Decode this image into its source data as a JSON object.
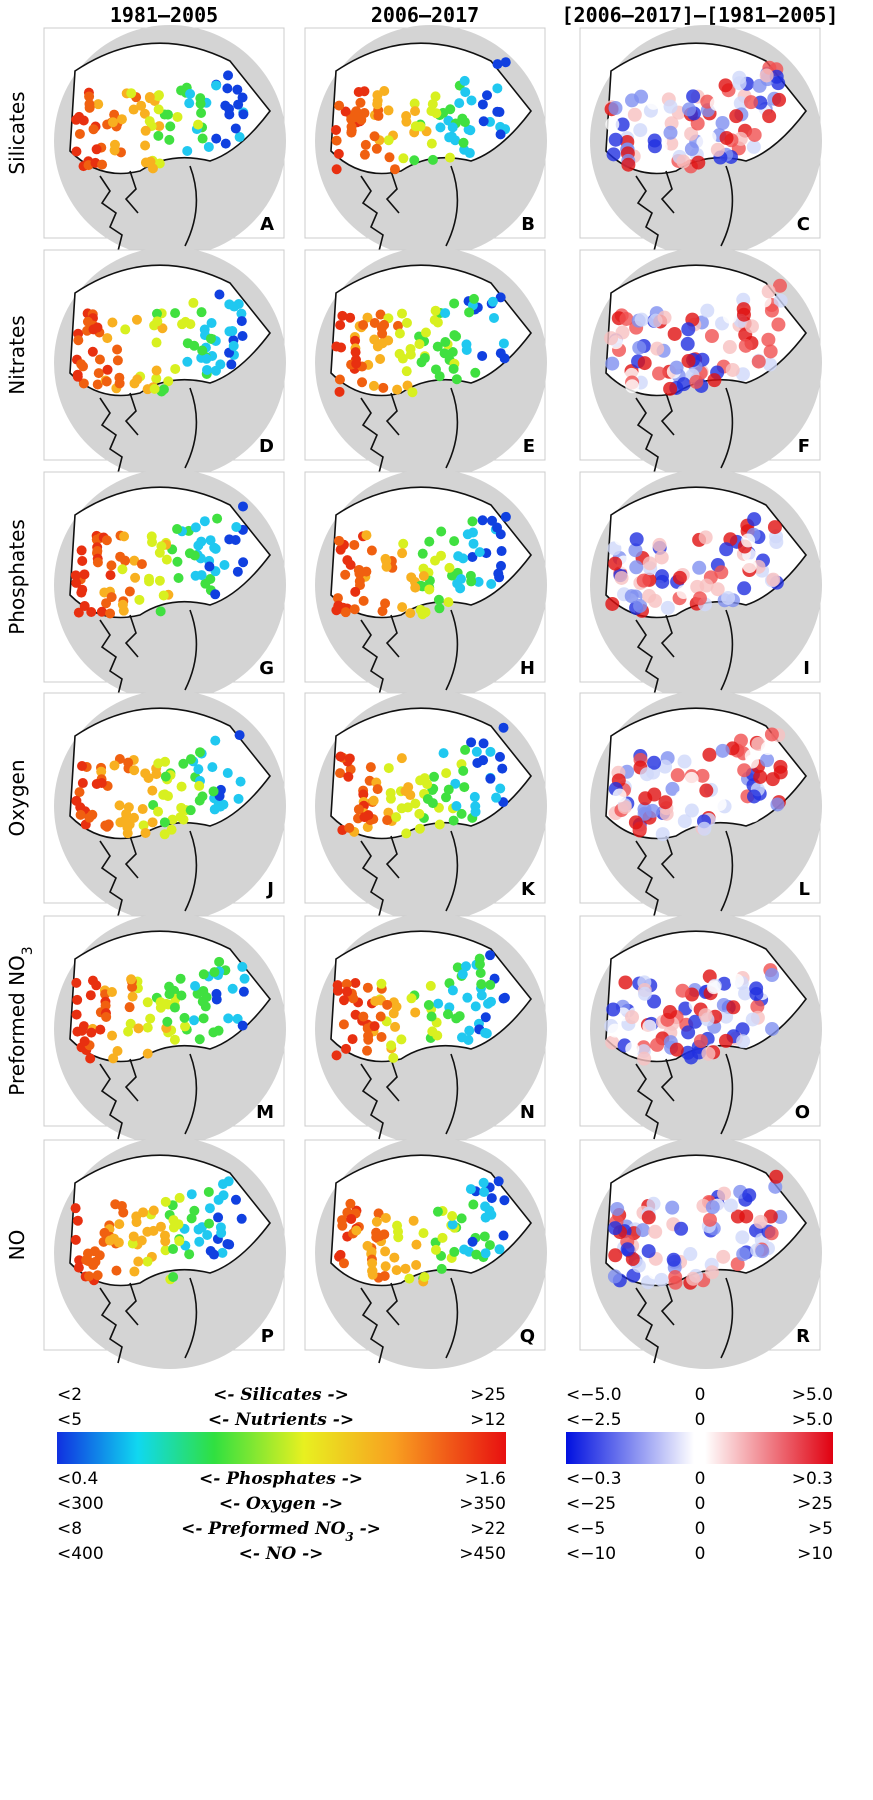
{
  "columns": [
    "1981–2005",
    "2006–2017",
    "[2006–2017]–[1981–2005]"
  ],
  "rows": [
    {
      "label": {
        "text": "Silicates"
      },
      "panels": [
        "A",
        "B",
        "C"
      ]
    },
    {
      "label": {
        "text": "Nitrates"
      },
      "panels": [
        "D",
        "E",
        "F"
      ]
    },
    {
      "label": {
        "text": "Phosphates"
      },
      "panels": [
        "G",
        "H",
        "I"
      ]
    },
    {
      "label": {
        "text": "Oxygen"
      },
      "panels": [
        "J",
        "K",
        "L"
      ]
    },
    {
      "label": {
        "text": "Preformed NO",
        "sub": "3"
      },
      "panels": [
        "M",
        "N",
        "O"
      ]
    },
    {
      "label": {
        "text": "NO"
      },
      "panels": [
        "P",
        "Q",
        "R"
      ]
    }
  ],
  "legend": {
    "left": {
      "above": [
        {
          "low": "<2",
          "name": {
            "text": "<- Silicates ->"
          },
          "high": ">25"
        },
        {
          "low": "<5",
          "name": {
            "text": "<- Nutrients ->"
          },
          "high": ">12"
        }
      ],
      "below": [
        {
          "low": "<0.4",
          "name": {
            "text": "<- Phosphates ->"
          },
          "high": ">1.6"
        },
        {
          "low": "<300",
          "name": {
            "text": "<- Oxygen ->"
          },
          "high": ">350"
        },
        {
          "low": "<8",
          "name": {
            "text": "<- Preformed NO",
            "sub": "3",
            "tail": " ->"
          },
          "high": ">22"
        },
        {
          "low": "<400",
          "name": {
            "text": "<- NO ->"
          },
          "high": ">450"
        }
      ]
    },
    "right": {
      "above": [
        {
          "low": "<−5.0",
          "mid": "0",
          "high": ">5.0"
        },
        {
          "low": "<−2.5",
          "mid": "0",
          "high": ">5.0"
        }
      ],
      "below": [
        {
          "low": "<−0.3",
          "mid": "0",
          "high": ">0.3"
        },
        {
          "low": "<−25",
          "mid": "0",
          "high": ">25"
        },
        {
          "low": "<−5",
          "mid": "0",
          "high": ">5"
        },
        {
          "low": "<−10",
          "mid": "0",
          "high": ">10"
        }
      ]
    }
  }
}
